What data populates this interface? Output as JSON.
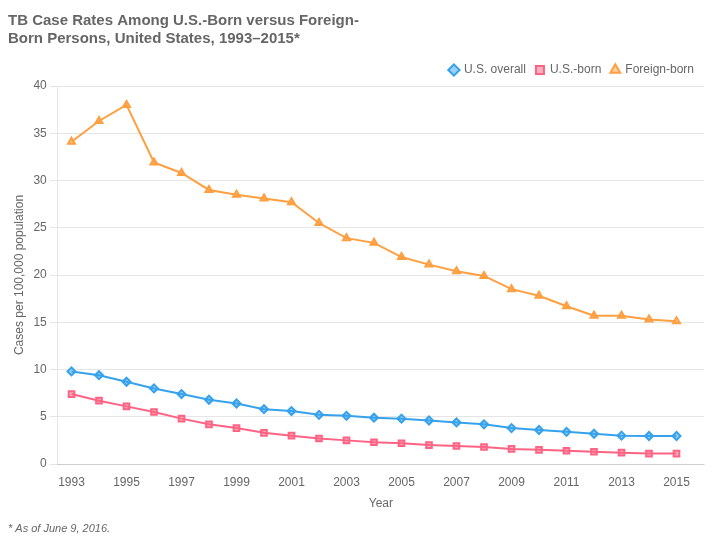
{
  "chart_data": {
    "type": "line",
    "title": [
      "TB Case Rates Among U.S.-Born versus Foreign-",
      "Born Persons, United States, 1993–2015*"
    ],
    "x_label": "Year",
    "y_label": "Cases per 100,000 population",
    "annotations": [
      "* As of June 9, 2016."
    ],
    "x": [
      1993,
      1994,
      1995,
      1996,
      1997,
      1998,
      1999,
      2000,
      2001,
      2002,
      2003,
      2004,
      2005,
      2006,
      2007,
      2008,
      2009,
      2010,
      2011,
      2012,
      2013,
      2014,
      2015
    ],
    "series": [
      {
        "name": "U.S. overall",
        "marker": "diamond",
        "values": [
          9.8,
          9.4,
          8.7,
          8.0,
          7.4,
          6.8,
          6.4,
          5.8,
          5.6,
          5.2,
          5.1,
          4.9,
          4.8,
          4.6,
          4.4,
          4.2,
          3.8,
          3.6,
          3.4,
          3.2,
          3.0,
          2.96,
          2.96
        ]
      },
      {
        "name": "U.S.-born",
        "marker": "square",
        "values": [
          7.4,
          6.7,
          6.1,
          5.5,
          4.8,
          4.2,
          3.8,
          3.3,
          3.0,
          2.7,
          2.5,
          2.3,
          2.2,
          2.0,
          1.9,
          1.8,
          1.6,
          1.5,
          1.4,
          1.3,
          1.2,
          1.1,
          1.1
        ]
      },
      {
        "name": "Foreign-born",
        "marker": "triangle",
        "values": [
          34.1,
          36.3,
          38.0,
          31.9,
          30.8,
          29.0,
          28.5,
          28.1,
          27.7,
          25.5,
          23.9,
          23.4,
          21.9,
          21.1,
          20.4,
          19.9,
          18.5,
          17.8,
          16.7,
          15.7,
          15.7,
          15.3,
          15.1
        ]
      }
    ],
    "xlim": [
      1992.5,
      2016.0
    ],
    "xticks": [
      1993,
      1995,
      1997,
      1999,
      2001,
      2003,
      2005,
      2007,
      2009,
      2011,
      2013,
      2015
    ],
    "ylim": [
      0,
      40
    ],
    "yticks": [
      0,
      5,
      10,
      15,
      20,
      25,
      30,
      35,
      40
    ],
    "grid": true,
    "legend": "upper right"
  }
}
